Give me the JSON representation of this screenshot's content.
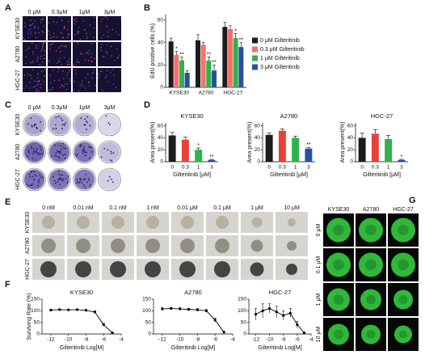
{
  "panel_labels": [
    "A",
    "B",
    "C",
    "D",
    "E",
    "F",
    "G"
  ],
  "image_grids": [
    {
      "col_labels": [
        "0 μM",
        "0.3μM",
        "1μM",
        "3μM"
      ],
      "row_labels": [
        "KYSE30",
        "A2780",
        "HGC-27"
      ]
    },
    {
      "col_labels": [
        "0 μM",
        "0.3μM",
        "1μM",
        "3μM"
      ],
      "row_labels": [
        "KYSE30",
        "A2780",
        "HGC-27"
      ]
    },
    {
      "col_labels": [
        "0 nM",
        "0.01 nM",
        "0.1 nM",
        "1 nM",
        "0.01 μM",
        "0.1 μM",
        "1 μM",
        "10 μM"
      ],
      "row_labels": [
        "KYSE30",
        "A2780",
        "HGC-27"
      ]
    },
    {
      "col_labels": [
        "KYSE30",
        "A2780",
        "HGC-27"
      ],
      "row_labels": [
        "0 μM",
        "0.1 μM",
        "1 μM",
        "10 μM"
      ]
    }
  ],
  "chart_data": [
    {
      "type": "bar",
      "ylabel": "EdU positive cells (%)",
      "categories": [
        "KYSE30",
        "A2780",
        "HGC-27"
      ],
      "ylim": [
        0,
        65
      ],
      "yticks": [
        0,
        20,
        40,
        60
      ],
      "series": [
        {
          "name": "0 μM Gilteritinib",
          "color": "#1c1c1c",
          "values": [
            41,
            42,
            54
          ],
          "errors": [
            3,
            5,
            4
          ],
          "significance": [
            null,
            null,
            null
          ]
        },
        {
          "name": "0.3 μM Gilteritinib",
          "color": "#f0746a",
          "values": [
            29,
            38,
            52
          ],
          "errors": [
            3,
            2,
            3
          ],
          "significance": [
            "*",
            null,
            null
          ]
        },
        {
          "name": "1 μM Gilteritinib",
          "color": "#2db34a",
          "values": [
            24,
            24,
            44
          ],
          "errors": [
            3,
            3,
            4
          ],
          "significance": [
            "**",
            "**",
            "*"
          ]
        },
        {
          "name": "3 μM Gilteritinib",
          "color": "#2b4fa0",
          "values": [
            13,
            15,
            36
          ],
          "errors": [
            2,
            5,
            4
          ],
          "significance": [
            null,
            "**",
            "**"
          ]
        }
      ]
    },
    {
      "type": "bar",
      "title": "KYSE30",
      "ylabel": "Area present(%)",
      "xlabel": "Gilteritinib [μM]",
      "categories": [
        "0",
        "0.3",
        "1",
        "3"
      ],
      "colors": [
        "#1c1c1c",
        "#e8413a",
        "#2db34a",
        "#2b4fa0"
      ],
      "values": [
        44,
        37,
        20,
        3
      ],
      "errors": [
        5,
        4,
        3,
        1
      ],
      "significance": [
        null,
        null,
        "*",
        "**"
      ],
      "ylim": [
        0,
        65
      ],
      "yticks": [
        0,
        20,
        40,
        60
      ]
    },
    {
      "type": "bar",
      "title": "A2780",
      "ylabel": "Area present(%)",
      "xlabel": "Gilteritinib [μM]",
      "categories": [
        "0",
        "0.3",
        "1",
        "3"
      ],
      "colors": [
        "#1c1c1c",
        "#e8413a",
        "#2db34a",
        "#2b4fa0"
      ],
      "values": [
        45,
        52,
        40,
        22
      ],
      "errors": [
        3,
        3,
        3,
        2
      ],
      "significance": [
        null,
        null,
        null,
        "**"
      ],
      "ylim": [
        0,
        65
      ],
      "yticks": [
        0,
        20,
        40,
        60
      ]
    },
    {
      "type": "bar",
      "title": "HGC-27",
      "ylabel": "Area present(%)",
      "xlabel": "Gilteritinib [μM]",
      "categories": [
        "0",
        "0.3",
        "1",
        "3"
      ],
      "colors": [
        "#1c1c1c",
        "#e8413a",
        "#2db34a",
        "#2b4fa0"
      ],
      "values": [
        40,
        47,
        38,
        3
      ],
      "errors": [
        8,
        7,
        6,
        1
      ],
      "significance": [
        null,
        null,
        null,
        "*"
      ],
      "ylim": [
        0,
        65
      ],
      "yticks": [
        0,
        20,
        40,
        60
      ]
    },
    {
      "type": "line",
      "title": "KYSE30",
      "ylabel": "Surviving Rate (%)",
      "xlabel": "Gilteritinib Log[M]",
      "color": "#000000",
      "x": [
        -12,
        -11,
        -10,
        -9,
        -8,
        -7,
        -6,
        -5
      ],
      "values": [
        103,
        105,
        104,
        105,
        102,
        95,
        40,
        5
      ],
      "errors": [
        4,
        3,
        3,
        3,
        4,
        5,
        6,
        2
      ],
      "xlim": [
        -13,
        -4
      ],
      "xticks": [
        -12,
        -10,
        -8,
        -6,
        -4
      ],
      "ylim": [
        0,
        150
      ],
      "yticks": [
        0,
        50,
        100,
        150
      ]
    },
    {
      "type": "line",
      "title": "A2780",
      "xlabel": "Gilteritinib Log[M]",
      "color": "#000000",
      "x": [
        -12,
        -11,
        -10,
        -9,
        -8,
        -7,
        -6,
        -5
      ],
      "values": [
        108,
        110,
        108,
        106,
        104,
        100,
        60,
        8
      ],
      "errors": [
        6,
        5,
        6,
        5,
        6,
        6,
        8,
        3
      ],
      "xlim": [
        -13,
        -4
      ],
      "xticks": [
        -12,
        -10,
        -8,
        -6,
        -4
      ],
      "ylim": [
        0,
        150
      ],
      "yticks": [
        0,
        50,
        100,
        150
      ]
    },
    {
      "type": "line",
      "title": "HGC-27",
      "xlabel": "Gilteritinib Log[M]",
      "color": "#000000",
      "x": [
        -12,
        -11,
        -10,
        -9,
        -8,
        -7,
        -6,
        -5
      ],
      "values": [
        85,
        100,
        110,
        95,
        80,
        90,
        40,
        5
      ],
      "errors": [
        25,
        30,
        20,
        25,
        20,
        20,
        15,
        3
      ],
      "xlim": [
        -13,
        -4
      ],
      "xticks": [
        -12,
        -10,
        -8,
        -6,
        -4
      ],
      "ylim": [
        0,
        150
      ],
      "yticks": [
        0,
        50,
        100,
        150
      ]
    }
  ]
}
